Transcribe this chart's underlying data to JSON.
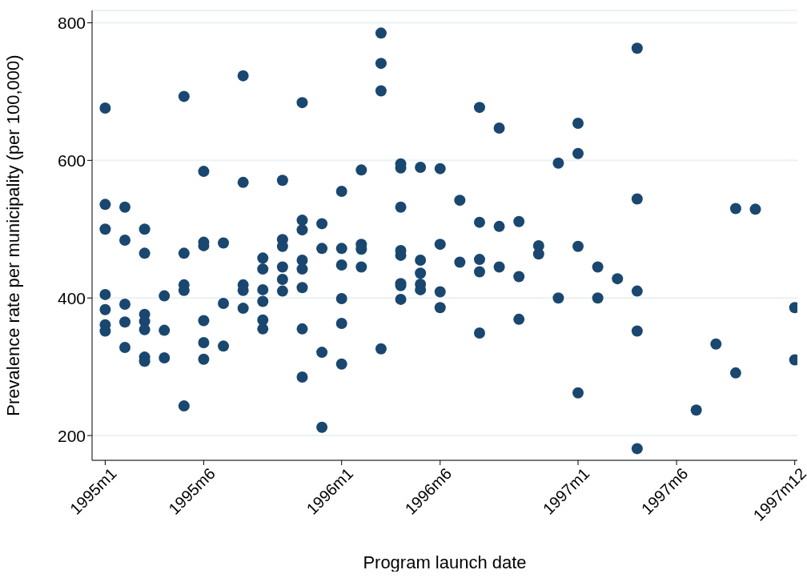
{
  "chart_data": {
    "type": "scatter",
    "xlabel": "Program launch date",
    "ylabel": "Prevalence rate per municipality (per 100,000)",
    "x": [
      "1995-01",
      "1995-01",
      "1995-01",
      "1995-01",
      "1995-01",
      "1995-01",
      "1995-01",
      "1995-02",
      "1995-02",
      "1995-02",
      "1995-02",
      "1995-02",
      "1995-03",
      "1995-03",
      "1995-03",
      "1995-03",
      "1995-03",
      "1995-03",
      "1995-03",
      "1995-04",
      "1995-04",
      "1995-04",
      "1995-05",
      "1995-05",
      "1995-05",
      "1995-05",
      "1995-05",
      "1995-06",
      "1995-06",
      "1995-06",
      "1995-06",
      "1995-06",
      "1995-06",
      "1995-07",
      "1995-07",
      "1995-07",
      "1995-08",
      "1995-08",
      "1995-08",
      "1995-08",
      "1995-08",
      "1995-09",
      "1995-09",
      "1995-09",
      "1995-09",
      "1995-09",
      "1995-09",
      "1995-10",
      "1995-10",
      "1995-10",
      "1995-10",
      "1995-10",
      "1995-10",
      "1995-11",
      "1995-11",
      "1995-11",
      "1995-11",
      "1995-11",
      "1995-11",
      "1995-11",
      "1995-11",
      "1995-12",
      "1995-12",
      "1995-12",
      "1995-12",
      "1996-01",
      "1996-01",
      "1996-01",
      "1996-01",
      "1996-01",
      "1996-01",
      "1996-02",
      "1996-02",
      "1996-02",
      "1996-02",
      "1996-03",
      "1996-03",
      "1996-03",
      "1996-03",
      "1996-04",
      "1996-04",
      "1996-04",
      "1996-04",
      "1996-04",
      "1996-04",
      "1996-04",
      "1996-04",
      "1996-05",
      "1996-05",
      "1996-05",
      "1996-05",
      "1996-05",
      "1996-06",
      "1996-06",
      "1996-06",
      "1996-06",
      "1996-07",
      "1996-07",
      "1996-08",
      "1996-08",
      "1996-08",
      "1996-08",
      "1996-08",
      "1996-09",
      "1996-09",
      "1996-09",
      "1996-10",
      "1996-10",
      "1996-10",
      "1996-11",
      "1996-11",
      "1996-12",
      "1996-12",
      "1997-01",
      "1997-01",
      "1997-01",
      "1997-01",
      "1997-02",
      "1997-02",
      "1997-03",
      "1997-04",
      "1997-04",
      "1997-04",
      "1997-04",
      "1997-04",
      "1997-07",
      "1997-08",
      "1997-09",
      "1997-09",
      "1997-10",
      "1997-12",
      "1997-12"
    ],
    "values": [
      676,
      536,
      500,
      405,
      383,
      361,
      352,
      532,
      484,
      391,
      365,
      328,
      500,
      465,
      376,
      366,
      354,
      314,
      308,
      403,
      353,
      313,
      693,
      465,
      419,
      411,
      243,
      584,
      481,
      476,
      367,
      335,
      311,
      480,
      392,
      330,
      723,
      568,
      419,
      411,
      385,
      458,
      442,
      412,
      395,
      368,
      355,
      571,
      485,
      475,
      445,
      427,
      410,
      684,
      513,
      499,
      455,
      442,
      415,
      355,
      285,
      508,
      472,
      321,
      212,
      555,
      472,
      448,
      399,
      363,
      304,
      586,
      478,
      471,
      445,
      785,
      741,
      701,
      326,
      595,
      589,
      532,
      469,
      462,
      421,
      418,
      398,
      590,
      455,
      436,
      420,
      412,
      588,
      478,
      409,
      386,
      542,
      452,
      677,
      510,
      456,
      438,
      349,
      647,
      504,
      445,
      511,
      431,
      369,
      476,
      464,
      596,
      400,
      654,
      610,
      475,
      262,
      445,
      400,
      428,
      763,
      544,
      410,
      352,
      181,
      237,
      333,
      530,
      291,
      529,
      386,
      310
    ],
    "color": "#1a476f",
    "marker": "circle",
    "grid": "y",
    "xlim": [
      "1994-12-11",
      "1997-12-05"
    ],
    "xticks": [
      {
        "value": "1995-01",
        "label": "1995m1"
      },
      {
        "value": "1995-06",
        "label": "1995m6"
      },
      {
        "value": "1996-01",
        "label": "1996m1"
      },
      {
        "value": "1996-06",
        "label": "1996m6"
      },
      {
        "value": "1997-01",
        "label": "1997m1"
      },
      {
        "value": "1997-06",
        "label": "1997m6"
      },
      {
        "value": "1997-12",
        "label": "1997m12"
      }
    ],
    "ylim": [
      164,
      818
    ],
    "yticks": [
      200,
      400,
      600,
      800
    ]
  }
}
